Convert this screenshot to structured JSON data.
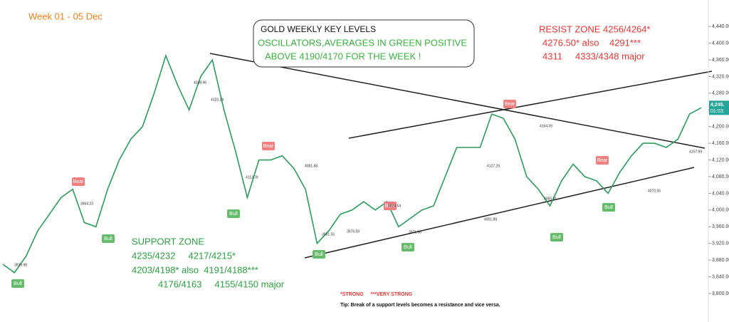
{
  "chart_data": {
    "type": "line",
    "color": "#2e9a5c",
    "values": [
      3870,
      3850,
      3890,
      3950,
      3990,
      4030,
      4050,
      3970,
      3960,
      4050,
      4120,
      4170,
      4200,
      4280,
      4370,
      4300,
      4240,
      4320,
      4360,
      4240,
      4140,
      4030,
      4120,
      4120,
      4130,
      4100,
      4050,
      3920,
      3950,
      3990,
      4000,
      4020,
      4000,
      4020,
      3960,
      3980,
      4000,
      4010,
      4080,
      4150,
      4150,
      4150,
      4230,
      4220,
      4170,
      4080,
      4050,
      4010,
      4070,
      4110,
      4080,
      4070,
      4040,
      4090,
      4130,
      4160,
      4160,
      4150,
      4170,
      4230,
      4245
    ],
    "ylim": [
      3760,
      4500
    ],
    "yticks": [
      {
        "value": 3800,
        "label": "3,800.00"
      },
      {
        "value": 3840,
        "label": "3,840.00"
      },
      {
        "value": 3880,
        "label": "3,880.00"
      },
      {
        "value": 3920,
        "label": "3,920.00"
      },
      {
        "value": 3960,
        "label": "3,960.00"
      },
      {
        "value": 4000,
        "label": "4,000.00"
      },
      {
        "value": 4040,
        "label": "4,040.00"
      },
      {
        "value": 4080,
        "label": "4,080.00"
      },
      {
        "value": 4120,
        "label": "4,120.00"
      },
      {
        "value": 4160,
        "label": "4,160.00"
      },
      {
        "value": 4200,
        "label": "4,200.00"
      },
      {
        "value": 4240,
        "label": "4,240.00"
      },
      {
        "value": 4280,
        "label": "4,280.00"
      },
      {
        "value": 4320,
        "label": "4,320.00"
      },
      {
        "value": 4360,
        "label": "4,360.00"
      },
      {
        "value": 4400,
        "label": "4,400.00"
      },
      {
        "value": 4440,
        "label": "4,440.00"
      }
    ],
    "price_badge": "4,245.",
    "timer": "01:03:",
    "week_label": "Week 01 - 05 Dec",
    "key_box": [
      "GOLD WEEKLY KEY LEVELS",
      "OSCILLATORS,AVERAGES IN GREEN POSITIVE",
      "ABOVE 4190/4170 FOR THE WEEK !"
    ],
    "resist": [
      "RESIST ZONE 4256/4264*",
      "4276.50* also    4291***",
      "4311     4333/4348 major"
    ],
    "support": [
      "SUPPORT ZONE",
      "4235/4232     4217/4215*",
      "4203/4198* also  4191/4188***",
      "4176/4163     4155/4150 major"
    ],
    "legend_note": "*STRONG     ***VERY STRONG",
    "tip": "Tip: Break of a support levels becomes a resistance and vice versa.",
    "signals": [
      "Bear",
      "Bear",
      "Bear",
      "Bear",
      "Bear",
      "Bull",
      "Bull",
      "Bull",
      "Bull",
      "Bull",
      "Bull",
      "Bull"
    ],
    "price_labels": [
      "4248.96",
      "4323.24",
      "4081.88",
      "4113.78",
      "4164.09",
      "4127.29",
      "4065.31",
      "4070.06",
      "4157.99",
      "4001.89",
      "3976.59",
      "3971.96",
      "4024.64",
      "3961.55",
      "3839.98",
      "3964.23"
    ]
  }
}
